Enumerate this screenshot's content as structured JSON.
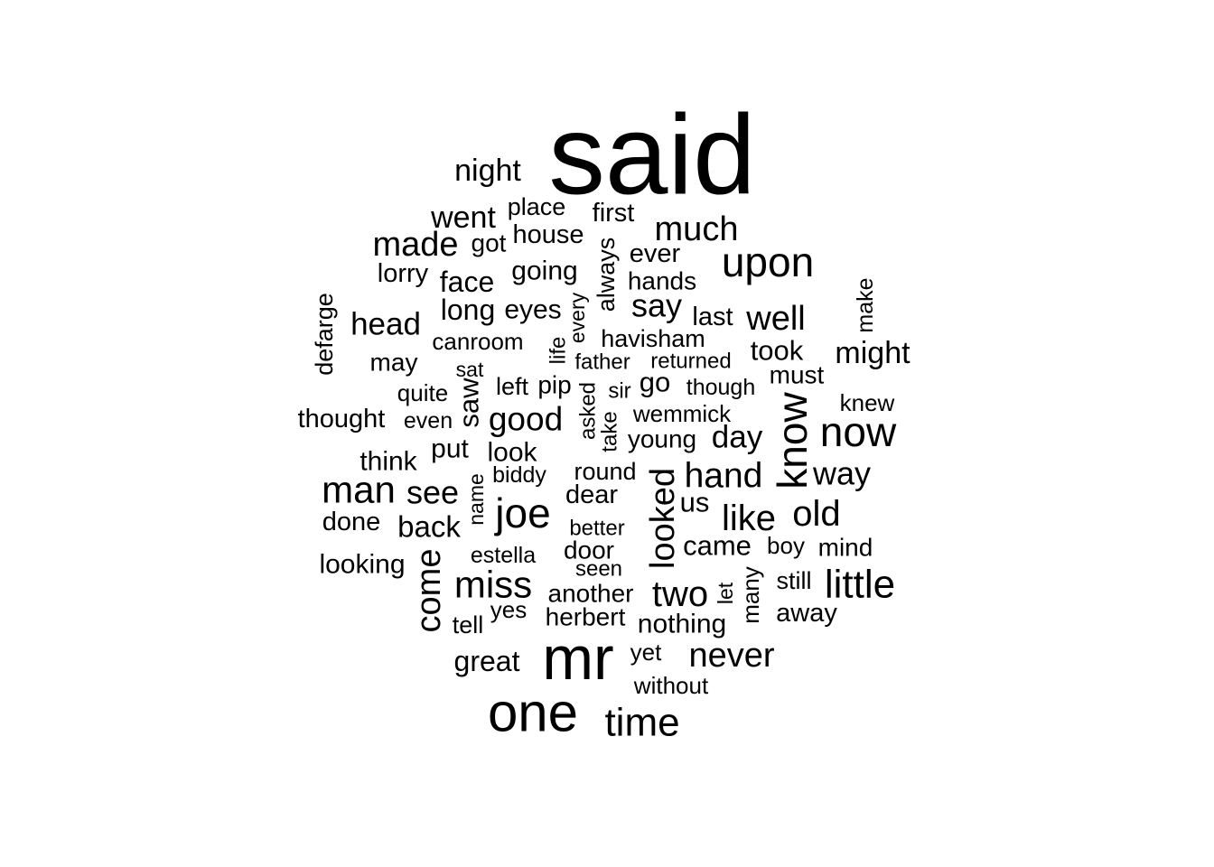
{
  "wordcloud": {
    "color": "#000000",
    "background": "#ffffff",
    "words": [
      {
        "word": "said"
      },
      {
        "word": "night"
      },
      {
        "word": "place"
      },
      {
        "word": "first"
      },
      {
        "word": "went"
      },
      {
        "word": "much"
      },
      {
        "word": "made"
      },
      {
        "word": "got"
      },
      {
        "word": "house"
      },
      {
        "word": "always"
      },
      {
        "word": "ever"
      },
      {
        "word": "upon"
      },
      {
        "word": "lorry"
      },
      {
        "word": "going"
      },
      {
        "word": "face"
      },
      {
        "word": "hands"
      },
      {
        "word": "make"
      },
      {
        "word": "defarge"
      },
      {
        "word": "long"
      },
      {
        "word": "eyes"
      },
      {
        "word": "every"
      },
      {
        "word": "say"
      },
      {
        "word": "last"
      },
      {
        "word": "well"
      },
      {
        "word": "head"
      },
      {
        "word": "canroom"
      },
      {
        "word": "life"
      },
      {
        "word": "havisham"
      },
      {
        "word": "took"
      },
      {
        "word": "might"
      },
      {
        "word": "may"
      },
      {
        "word": "father"
      },
      {
        "word": "returned"
      },
      {
        "word": "sat"
      },
      {
        "word": "must"
      },
      {
        "word": "left"
      },
      {
        "word": "pip"
      },
      {
        "word": "go"
      },
      {
        "word": "sir"
      },
      {
        "word": "though"
      },
      {
        "word": "quite"
      },
      {
        "word": "saw"
      },
      {
        "word": "asked"
      },
      {
        "word": "knew"
      },
      {
        "word": "thought"
      },
      {
        "word": "even"
      },
      {
        "word": "good"
      },
      {
        "word": "wemmick"
      },
      {
        "word": "know"
      },
      {
        "word": "now"
      },
      {
        "word": "take"
      },
      {
        "word": "put"
      },
      {
        "word": "young"
      },
      {
        "word": "day"
      },
      {
        "word": "think"
      },
      {
        "word": "look"
      },
      {
        "word": "biddy"
      },
      {
        "word": "round"
      },
      {
        "word": "hand"
      },
      {
        "word": "way"
      },
      {
        "word": "man"
      },
      {
        "word": "see"
      },
      {
        "word": "name"
      },
      {
        "word": "dear"
      },
      {
        "word": "looked"
      },
      {
        "word": "us"
      },
      {
        "word": "joe"
      },
      {
        "word": "like"
      },
      {
        "word": "old"
      },
      {
        "word": "done"
      },
      {
        "word": "back"
      },
      {
        "word": "better"
      },
      {
        "word": "boy"
      },
      {
        "word": "came"
      },
      {
        "word": "mind"
      },
      {
        "word": "estella"
      },
      {
        "word": "door"
      },
      {
        "word": "looking"
      },
      {
        "word": "seen"
      },
      {
        "word": "come"
      },
      {
        "word": "miss"
      },
      {
        "word": "still"
      },
      {
        "word": "little"
      },
      {
        "word": "another"
      },
      {
        "word": "two"
      },
      {
        "word": "let"
      },
      {
        "word": "many"
      },
      {
        "word": "yes"
      },
      {
        "word": "herbert"
      },
      {
        "word": "away"
      },
      {
        "word": "tell"
      },
      {
        "word": "nothing"
      },
      {
        "word": "mr"
      },
      {
        "word": "yet"
      },
      {
        "word": "great"
      },
      {
        "word": "never"
      },
      {
        "word": "without"
      },
      {
        "word": "one"
      },
      {
        "word": "time"
      }
    ]
  }
}
